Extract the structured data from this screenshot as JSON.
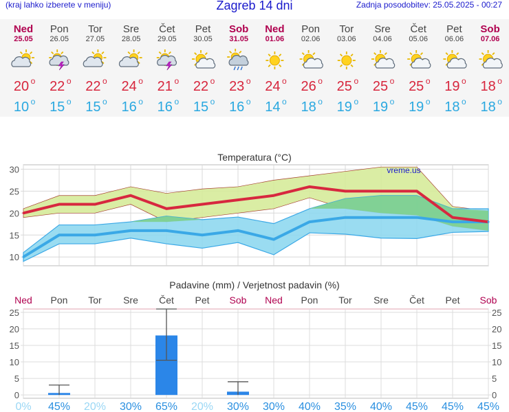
{
  "header": {
    "menu_hint": "(kraj lahko izberete v meniju)",
    "title": "Zagreb 14 dni",
    "updated": "Zadnja posodobitev: 25.05.2025 - 00:27"
  },
  "days": [
    {
      "name": "Ned",
      "date": "25.05",
      "weekend": true,
      "icon": "partly-cloudy-icon",
      "tmax": "20",
      "tmin": "10"
    },
    {
      "name": "Pon",
      "date": "26.05",
      "weekend": false,
      "icon": "thunderstorm-sun-icon",
      "tmax": "22",
      "tmin": "15"
    },
    {
      "name": "Tor",
      "date": "27.05",
      "weekend": false,
      "icon": "partly-cloudy-icon",
      "tmax": "22",
      "tmin": "15"
    },
    {
      "name": "Sre",
      "date": "28.05",
      "weekend": false,
      "icon": "partly-cloudy-icon",
      "tmax": "24",
      "tmin": "16"
    },
    {
      "name": "Čet",
      "date": "29.05",
      "weekend": false,
      "icon": "thunderstorm-sun-icon",
      "tmax": "21",
      "tmin": "16"
    },
    {
      "name": "Pet",
      "date": "30.05",
      "weekend": false,
      "icon": "sun-cloud-icon",
      "tmax": "22",
      "tmin": "15"
    },
    {
      "name": "Sob",
      "date": "31.05",
      "weekend": true,
      "icon": "rain-cloud-sun-icon",
      "tmax": "23",
      "tmin": "16"
    },
    {
      "name": "Ned",
      "date": "01.06",
      "weekend": true,
      "icon": "sunny-icon",
      "tmax": "24",
      "tmin": "14"
    },
    {
      "name": "Pon",
      "date": "02.06",
      "weekend": false,
      "icon": "sun-cloud-icon",
      "tmax": "26",
      "tmin": "18"
    },
    {
      "name": "Tor",
      "date": "03.06",
      "weekend": false,
      "icon": "sunny-icon",
      "tmax": "25",
      "tmin": "19"
    },
    {
      "name": "Sre",
      "date": "04.06",
      "weekend": false,
      "icon": "sun-cloud-icon",
      "tmax": "25",
      "tmin": "19"
    },
    {
      "name": "Čet",
      "date": "05.06",
      "weekend": false,
      "icon": "sun-cloud-icon",
      "tmax": "25",
      "tmin": "19"
    },
    {
      "name": "Pet",
      "date": "06.06",
      "weekend": false,
      "icon": "sun-cloud-icon",
      "tmax": "19",
      "tmin": "18"
    },
    {
      "name": "Sob",
      "date": "07.06",
      "weekend": true,
      "icon": "sun-cloud-icon",
      "tmax": "18",
      "tmin": "18"
    }
  ],
  "degree_symbol": "o",
  "colors": {
    "weekday": "#444444",
    "weekend": "#b0004f",
    "tmax": "#d7263d",
    "tmin": "#2aa8e0",
    "max_band": "#d6eb9a",
    "min_band": "#8fd8ef",
    "overlap_band": "#7ccf86",
    "max_line": "#d7283f",
    "min_line": "#3aa8e6",
    "bar": "#2b86e8",
    "prob_zero": "#9ad7f5",
    "prob": "#2a8fe0",
    "watermark": "#1a1acc"
  },
  "chart_data": [
    {
      "type": "area",
      "title": "Temperatura (°C)",
      "watermark": "vreme.us",
      "ylim": [
        8,
        31
      ],
      "yticks": [
        "10",
        "15",
        "20",
        "25",
        "30"
      ],
      "grid": true,
      "series": [
        {
          "name": "Tmax",
          "values": [
            20,
            22,
            22,
            24,
            21,
            22,
            23,
            24,
            26,
            25,
            25,
            25,
            19,
            18
          ]
        },
        {
          "name": "Tmin",
          "values": [
            10,
            15,
            15,
            16,
            16,
            15,
            16,
            14,
            18,
            19,
            19,
            19,
            18,
            18
          ]
        }
      ],
      "max_range": {
        "low": [
          19,
          20,
          20,
          22,
          18,
          19,
          20,
          21,
          23.5,
          21,
          20,
          19.5,
          17,
          16
        ],
        "high": [
          21,
          24,
          24,
          26,
          24.5,
          25.5,
          26,
          27.5,
          28.5,
          29.5,
          30.5,
          30.5,
          21.5,
          20.5
        ]
      },
      "min_range": {
        "low": [
          9,
          13,
          13,
          14.3,
          13,
          12,
          13.3,
          10.5,
          15.5,
          15.2,
          14.3,
          14.2,
          15.6,
          15.8
        ],
        "high": [
          11,
          17.3,
          17.3,
          18,
          19.3,
          18.5,
          19.1,
          17.6,
          21,
          23.3,
          24,
          24,
          21,
          21
        ]
      }
    },
    {
      "type": "bar",
      "title": "Padavine (mm) / Verjetnost padavin (%)",
      "categories": [
        "Ned",
        "Pon",
        "Tor",
        "Sre",
        "Čet",
        "Pet",
        "Sob",
        "Ned",
        "Pon",
        "Tor",
        "Sre",
        "Čet",
        "Pet",
        "Sob"
      ],
      "ylim": [
        -1,
        26
      ],
      "yticks": [
        "0",
        "5",
        "10",
        "15",
        "20",
        "25"
      ],
      "values": [
        0,
        0.6,
        0,
        0,
        18,
        0,
        1,
        0,
        0,
        0,
        0,
        0,
        0,
        0
      ],
      "errors": [
        null,
        [
          0,
          3
        ],
        null,
        null,
        [
          10.5,
          26
        ],
        null,
        [
          0,
          4
        ],
        null,
        null,
        null,
        null,
        null,
        null,
        null
      ],
      "probability": [
        "0%",
        "45%",
        "20%",
        "30%",
        "65%",
        "20%",
        "30%",
        "30%",
        "40%",
        "35%",
        "40%",
        "45%",
        "45%",
        "45%"
      ],
      "grid": true
    }
  ]
}
